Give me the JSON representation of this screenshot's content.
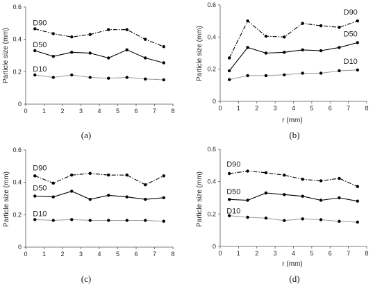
{
  "chart_data": [
    {
      "type": "line",
      "panel_label": "(a)",
      "xlabel": "",
      "ylabel": "Particle size (mm)",
      "xlim": [
        0,
        8
      ],
      "ylim": [
        0,
        0.6
      ],
      "x_ticks": [
        "0",
        "1",
        "2",
        "3",
        "4",
        "5",
        "6",
        "7",
        "8"
      ],
      "y_ticks": [
        "0",
        "0.2",
        "0.4",
        "0.6"
      ],
      "x": [
        0.5,
        1.5,
        2.5,
        3.5,
        4.5,
        5.5,
        6.5,
        7.5
      ],
      "series": [
        {
          "name": "D90",
          "style": "dashdot",
          "color": "#000000",
          "values": [
            0.465,
            0.435,
            0.415,
            0.43,
            0.46,
            0.46,
            0.4,
            0.355
          ]
        },
        {
          "name": "D50",
          "style": "solid",
          "color": "#000000",
          "values": [
            0.33,
            0.295,
            0.32,
            0.315,
            0.285,
            0.335,
            0.285,
            0.255
          ]
        },
        {
          "name": "D10",
          "style": "solid-gray",
          "color": "#999999",
          "values": [
            0.18,
            0.165,
            0.18,
            0.165,
            0.16,
            0.165,
            0.155,
            0.15
          ]
        }
      ],
      "grid": false,
      "legend": "inline labels"
    },
    {
      "type": "line",
      "panel_label": "(b)",
      "xlabel": "r (mm)",
      "ylabel": "Particle size (mm)",
      "xlim": [
        0,
        8
      ],
      "ylim": [
        0,
        0.6
      ],
      "x_ticks": [
        "0",
        "1",
        "2",
        "3",
        "4",
        "5",
        "6",
        "7",
        "8"
      ],
      "y_ticks": [
        "0",
        "0.2",
        "0.4",
        "0.6"
      ],
      "x": [
        0.5,
        1.5,
        2.5,
        3.5,
        4.5,
        5.5,
        6.5,
        7.5
      ],
      "series": [
        {
          "name": "D90",
          "style": "dashdot",
          "color": "#000000",
          "values": [
            0.27,
            0.5,
            0.405,
            0.4,
            0.485,
            0.47,
            0.46,
            0.5
          ]
        },
        {
          "name": "D50",
          "style": "solid",
          "color": "#000000",
          "values": [
            0.19,
            0.335,
            0.3,
            0.305,
            0.32,
            0.315,
            0.335,
            0.365
          ]
        },
        {
          "name": "D10",
          "style": "solid-gray",
          "color": "#999999",
          "values": [
            0.135,
            0.16,
            0.16,
            0.165,
            0.175,
            0.175,
            0.19,
            0.195
          ]
        }
      ],
      "grid": false,
      "legend": "inline labels"
    },
    {
      "type": "line",
      "panel_label": "(c)",
      "xlabel": "",
      "ylabel": "Particle size  (mm)",
      "xlim": [
        0,
        8
      ],
      "ylim": [
        0,
        0.6
      ],
      "x_ticks": [
        "0",
        "1",
        "2",
        "3",
        "4",
        "5",
        "6",
        "7",
        "8"
      ],
      "y_ticks": [
        "0",
        "0.2",
        "0.4",
        "0.6"
      ],
      "x": [
        0.5,
        1.5,
        2.5,
        3.5,
        4.5,
        5.5,
        6.5,
        7.5
      ],
      "series": [
        {
          "name": "D90",
          "style": "dashdot",
          "color": "#000000",
          "values": [
            0.44,
            0.395,
            0.445,
            0.455,
            0.445,
            0.445,
            0.385,
            0.44
          ]
        },
        {
          "name": "D50",
          "style": "solid",
          "color": "#000000",
          "values": [
            0.315,
            0.31,
            0.345,
            0.295,
            0.32,
            0.31,
            0.295,
            0.305
          ]
        },
        {
          "name": "D10",
          "style": "solid-gray",
          "color": "#999999",
          "values": [
            0.17,
            0.165,
            0.17,
            0.165,
            0.165,
            0.165,
            0.165,
            0.16
          ]
        }
      ],
      "grid": false,
      "legend": "inline labels"
    },
    {
      "type": "line",
      "panel_label": "(d)",
      "xlabel": "r (mm)",
      "ylabel": "Particle size (mm)",
      "xlim": [
        0,
        8
      ],
      "ylim": [
        0,
        0.6
      ],
      "x_ticks": [
        "0",
        "1",
        "2",
        "3",
        "4",
        "5",
        "6",
        "7",
        "8"
      ],
      "y_ticks": [
        "0",
        "0.2",
        "0.4",
        "0.6"
      ],
      "x": [
        0.5,
        1.5,
        2.5,
        3.5,
        4.5,
        5.5,
        6.5,
        7.5
      ],
      "series": [
        {
          "name": "D90",
          "style": "dashdot",
          "color": "#000000",
          "values": [
            0.45,
            0.465,
            0.455,
            0.44,
            0.415,
            0.405,
            0.42,
            0.37
          ]
        },
        {
          "name": "D50",
          "style": "solid",
          "color": "#000000",
          "values": [
            0.29,
            0.285,
            0.33,
            0.32,
            0.31,
            0.285,
            0.3,
            0.28
          ]
        },
        {
          "name": "D10",
          "style": "solid-gray",
          "color": "#999999",
          "values": [
            0.19,
            0.18,
            0.175,
            0.16,
            0.17,
            0.165,
            0.155,
            0.15
          ]
        }
      ],
      "grid": false,
      "legend": "inline labels"
    }
  ]
}
